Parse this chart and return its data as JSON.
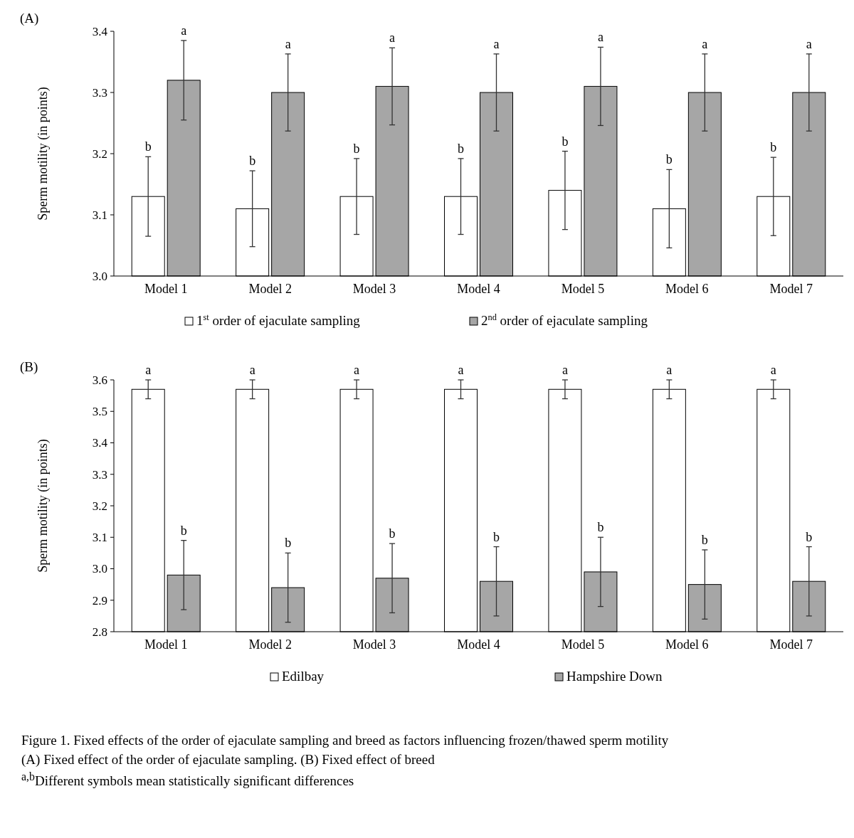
{
  "chart_data": [
    {
      "type": "bar",
      "title": "(A)",
      "ylabel": "Sperm motility (in points)",
      "categories": [
        "Model 1",
        "Model 2",
        "Model 3",
        "Model 4",
        "Model 5",
        "Model 6",
        "Model 7"
      ],
      "series": [
        {
          "name": "1$^{st}$ order of ejaculate sampling",
          "color": "#ffffff",
          "values": [
            3.13,
            3.11,
            3.13,
            3.13,
            3.14,
            3.11,
            3.13
          ],
          "errors": [
            0.065,
            0.062,
            0.062,
            0.062,
            0.064,
            0.064,
            0.064
          ]
        },
        {
          "name": "2$^{nd}$ order of ejaculate sampling",
          "color": "#a6a6a6",
          "values": [
            3.32,
            3.3,
            3.31,
            3.3,
            3.31,
            3.3,
            3.3
          ],
          "errors": [
            0.065,
            0.063,
            0.063,
            0.063,
            0.064,
            0.063,
            0.063
          ]
        }
      ],
      "ylim": [
        3.0,
        3.4
      ],
      "yticks": [
        {
          "value": 3.0,
          "label": "3.0"
        },
        3.1,
        3.2,
        3.3,
        3.4
      ],
      "grid": false,
      "legend": "bottom",
      "annotations": [
        "b",
        "a",
        "b",
        "a",
        "b",
        "a",
        "b",
        "a",
        "b",
        "a",
        "b",
        "a",
        "b",
        "a"
      ]
    },
    {
      "type": "bar",
      "title": "(B)",
      "ylabel": "Sperm motility (in points)",
      "categories": [
        "Model 1",
        "Model 2",
        "Model 3",
        "Model 4",
        "Model 5",
        "Model 6",
        "Model 7"
      ],
      "series": [
        {
          "name": "Edilbay",
          "color": "#ffffff",
          "values": [
            3.57,
            3.57,
            3.57,
            3.57,
            3.57,
            3.57,
            3.57
          ],
          "errors": [
            0.03,
            0.03,
            0.03,
            0.03,
            0.03,
            0.03,
            0.03
          ]
        },
        {
          "name": "Hampshire Down",
          "color": "#a6a6a6",
          "values": [
            2.98,
            2.94,
            2.97,
            2.96,
            2.99,
            2.95,
            2.96
          ],
          "errors": [
            0.11,
            0.11,
            0.11,
            0.11,
            0.11,
            0.11,
            0.11
          ]
        }
      ],
      "ylim": [
        2.8,
        3.6
      ],
      "yticks": [
        2.8,
        2.9,
        {
          "value": 3.0,
          "label": "3.0"
        },
        3.1,
        3.2,
        3.3,
        3.4,
        3.5,
        3.6
      ],
      "grid": false,
      "legend": "bottom",
      "annotations": [
        "a",
        "b",
        "a",
        "b",
        "a",
        "b",
        "a",
        "b",
        "a",
        "b",
        "a",
        "b",
        "a",
        "b",
        "Figure 1. Fixed effects of the order of ejaculate sampling and breed as factors influencing frozen/thawed sperm motility",
        "(A) Fixed effect of the order of ejaculate sampling. (B) Fixed effect of breed",
        "$^{a,b}$Different symbols mean statistically significant differences"
      ]
    }
  ]
}
